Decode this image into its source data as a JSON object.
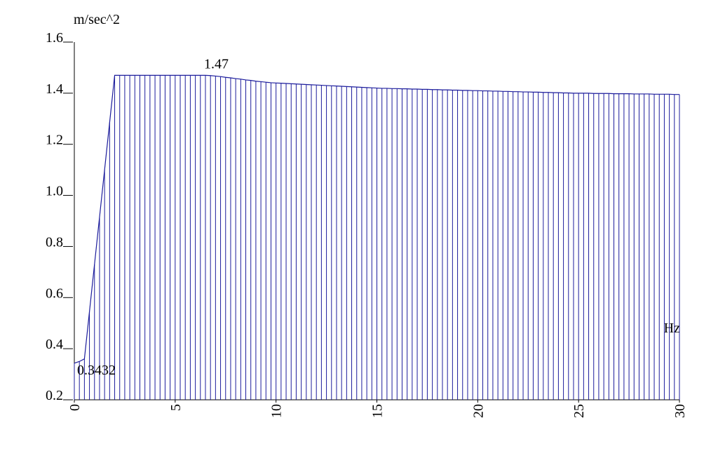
{
  "chart_data": {
    "type": "spectrum",
    "y_label": "m/sec^2",
    "x_label": "Hz",
    "color": "#1c1c9c",
    "xlim": [
      0,
      30
    ],
    "ylim": [
      0.2,
      1.6
    ],
    "xticks": [
      0,
      5,
      10,
      15,
      20,
      25,
      30
    ],
    "yticks": [
      0.2,
      0.4,
      0.6,
      0.8,
      {
        "value": 1.0,
        "label": "1.0"
      },
      1.2,
      1.4,
      1.6
    ],
    "annotations": [
      {
        "text": "1.47",
        "x": 6.5,
        "y": 1.47
      },
      {
        "text": "0.3432",
        "x": 0,
        "y": 0.3432
      }
    ],
    "x": [
      0,
      0.25,
      0.5,
      0.75,
      1,
      1.25,
      1.5,
      1.75,
      2,
      2.25,
      2.5,
      2.75,
      3,
      3.25,
      3.5,
      3.75,
      4,
      4.25,
      4.5,
      4.75,
      5,
      5.25,
      5.5,
      5.75,
      6,
      6.25,
      6.5,
      6.75,
      7,
      7.25,
      7.5,
      7.75,
      8,
      8.25,
      8.5,
      8.75,
      9,
      9.25,
      9.5,
      9.75,
      10,
      10.25,
      10.5,
      10.75,
      11,
      11.25,
      11.5,
      11.75,
      12,
      12.25,
      12.5,
      12.75,
      13,
      13.25,
      13.5,
      13.75,
      14,
      14.25,
      14.5,
      14.75,
      15,
      15.25,
      15.5,
      15.75,
      16,
      16.25,
      16.5,
      16.75,
      17,
      17.25,
      17.5,
      17.75,
      18,
      18.25,
      18.5,
      18.75,
      19,
      19.25,
      19.5,
      19.75,
      20,
      20.25,
      20.5,
      20.75,
      21,
      21.25,
      21.5,
      21.75,
      22,
      22.25,
      22.5,
      22.75,
      23,
      23.25,
      23.5,
      23.75,
      24,
      24.25,
      24.5,
      24.75,
      25,
      25.25,
      25.5,
      25.75,
      26,
      26.25,
      26.5,
      26.75,
      27,
      27.25,
      27.5,
      27.75,
      28,
      28.25,
      28.5,
      28.75,
      29,
      29.25,
      29.5,
      29.75,
      30
    ],
    "values": [
      0.3432,
      0.35,
      0.36,
      0.545,
      0.73,
      0.915,
      1.1,
      1.285,
      1.47,
      1.47,
      1.47,
      1.47,
      1.47,
      1.47,
      1.47,
      1.47,
      1.47,
      1.47,
      1.47,
      1.47,
      1.47,
      1.47,
      1.47,
      1.47,
      1.47,
      1.47,
      1.47,
      1.469,
      1.467,
      1.465,
      1.462,
      1.46,
      1.457,
      1.455,
      1.452,
      1.45,
      1.447,
      1.445,
      1.443,
      1.441,
      1.44,
      1.439,
      1.438,
      1.437,
      1.436,
      1.435,
      1.434,
      1.433,
      1.432,
      1.431,
      1.43,
      1.429,
      1.428,
      1.427,
      1.426,
      1.425,
      1.424,
      1.423,
      1.422,
      1.421,
      1.42,
      1.419,
      1.419,
      1.418,
      1.418,
      1.417,
      1.417,
      1.416,
      1.416,
      1.415,
      1.415,
      1.414,
      1.414,
      1.413,
      1.413,
      1.412,
      1.412,
      1.411,
      1.411,
      1.41,
      1.41,
      1.409,
      1.409,
      1.408,
      1.408,
      1.407,
      1.407,
      1.406,
      1.406,
      1.405,
      1.405,
      1.404,
      1.404,
      1.403,
      1.403,
      1.402,
      1.402,
      1.401,
      1.401,
      1.4,
      1.4,
      1.4,
      1.4,
      1.399,
      1.399,
      1.399,
      1.399,
      1.398,
      1.398,
      1.398,
      1.398,
      1.397,
      1.397,
      1.397,
      1.397,
      1.396,
      1.396,
      1.396,
      1.396,
      1.395,
      1.395
    ]
  }
}
